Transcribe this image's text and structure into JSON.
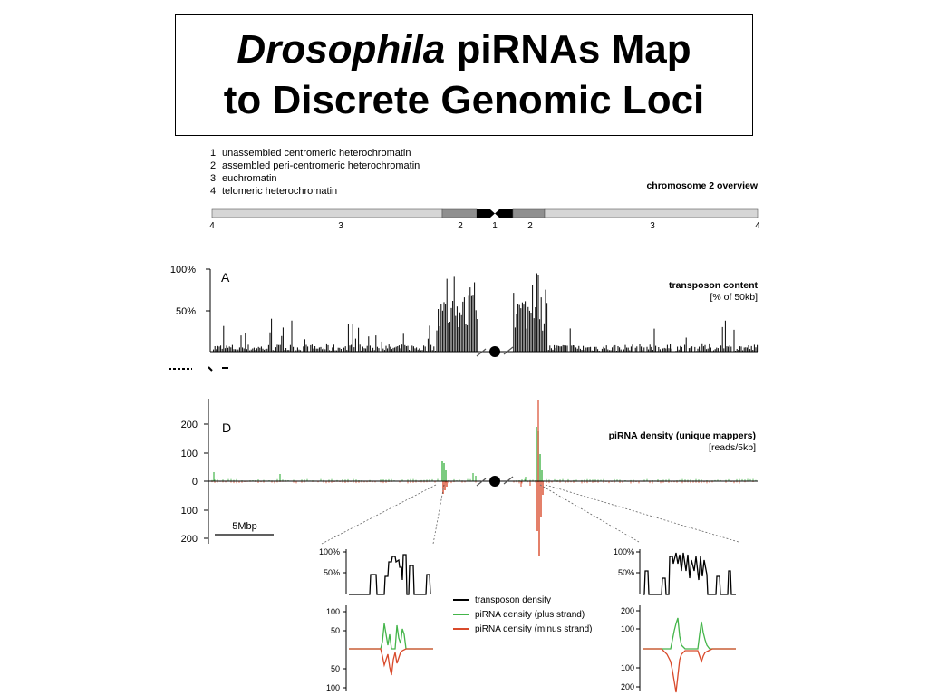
{
  "title": {
    "italic": "Drosophila",
    "rest_line1": "piRNAs Map",
    "line2": "to Discrete Genomic Loci"
  },
  "legend_regions": [
    {
      "num": "1",
      "label": "unassembled centromeric heterochromatin"
    },
    {
      "num": "2",
      "label": "assembled peri-centromeric heterochromatin"
    },
    {
      "num": "3",
      "label": "euchromatin"
    },
    {
      "num": "4",
      "label": "telomeric heterochromatin"
    }
  ],
  "overview_label": "chromosome 2 overview",
  "region_numbers": [
    "4",
    "3",
    "2",
    "1",
    "2",
    "3",
    "4"
  ],
  "panel_a": {
    "letter": "A",
    "label": "transposon content",
    "units": "[% of 50kb]",
    "yticks": [
      "100%",
      "50%"
    ]
  },
  "panel_d": {
    "letter": "D",
    "label": "piRNA density (unique mappers)",
    "units": "[reads/5kb]",
    "yticks": [
      "200",
      "100",
      "0",
      "100",
      "200"
    ]
  },
  "scale_bar": "5Mbp",
  "zoom_left": {
    "top_ticks": [
      "100%",
      "50%"
    ],
    "bottom_ticks": [
      "100",
      "50",
      "50",
      "100"
    ]
  },
  "zoom_right": {
    "top_ticks": [
      "100%",
      "50%"
    ],
    "bottom_ticks": [
      "200",
      "100",
      "100",
      "200"
    ]
  },
  "line_legend": [
    {
      "label": "transposon density",
      "color": "#000000"
    },
    {
      "label": "piRNA density (plus strand)",
      "color": "#44b54a"
    },
    {
      "label": "piRNA density (minus strand)",
      "color": "#d94a2b"
    }
  ],
  "colors": {
    "plus": "#44b54a",
    "minus": "#d94a2b",
    "bar_light": "#d6d6d6",
    "bar_mid": "#8f8f8f"
  },
  "chart_data": [
    {
      "type": "bar",
      "title": "transposon content",
      "ylabel": "[% of 50kb]",
      "ylim": [
        0,
        100
      ],
      "note": "dense histogram along chromosome 2; peaks near the peri-centromeric regions reach ~60-100%"
    },
    {
      "type": "line",
      "title": "piRNA density (unique mappers)",
      "ylabel": "[reads/5kb]",
      "ylim": [
        -200,
        200
      ],
      "series": [
        {
          "name": "piRNA density (plus strand)"
        },
        {
          "name": "piRNA density (minus strand)"
        }
      ]
    }
  ]
}
